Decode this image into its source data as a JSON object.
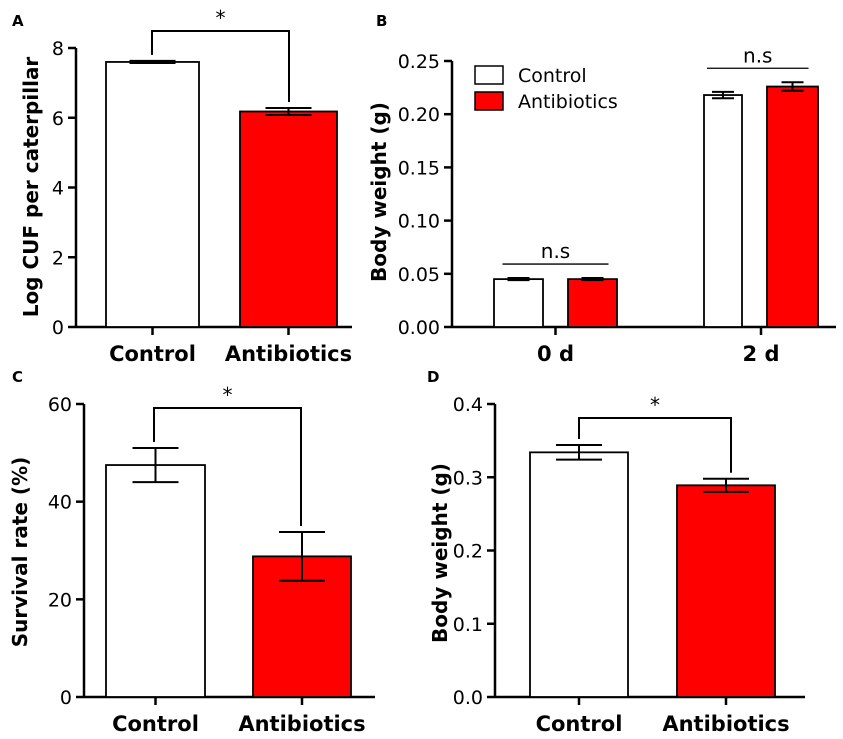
{
  "colors": {
    "control": "#ffffff",
    "antibiotics": "#ff0000",
    "stroke": "#000000"
  },
  "chart_data": [
    {
      "panel": "A",
      "type": "bar",
      "title": "",
      "xlabel": "",
      "ylabel": "Log CUF per caterpillar",
      "ylim": [
        0,
        8
      ],
      "yticks": [
        0,
        2,
        4,
        6,
        8
      ],
      "ytick_labels": [
        "0",
        "2",
        "4",
        "6",
        "8"
      ],
      "categories": [
        "Control",
        "Antibiotics"
      ],
      "values": [
        7.6,
        6.18
      ],
      "errors": [
        0.03,
        0.1
      ],
      "bar_colors": [
        "#ffffff",
        "#ff0000"
      ],
      "significance": [
        {
          "from": 0,
          "to": 1,
          "label": "*"
        }
      ]
    },
    {
      "panel": "B",
      "type": "bar",
      "title": "",
      "xlabel": "",
      "ylabel": "Body weight (g)",
      "ylim": [
        0,
        0.25
      ],
      "yticks": [
        0,
        0.05,
        0.1,
        0.15,
        0.2,
        0.25
      ],
      "ytick_labels": [
        "0.00",
        "0.05",
        "0.10",
        "0.15",
        "0.20",
        "0.25"
      ],
      "categories": [
        "0 d",
        "2 d"
      ],
      "series": [
        {
          "name": "Control",
          "color": "#ffffff",
          "values": [
            0.045,
            0.218
          ],
          "errors": [
            0.001,
            0.003
          ]
        },
        {
          "name": "Antibiotics",
          "color": "#ff0000",
          "values": [
            0.045,
            0.226
          ],
          "errors": [
            0.001,
            0.004
          ]
        }
      ],
      "legend": "top-left",
      "significance": [
        {
          "group": 0,
          "label": "n.s"
        },
        {
          "group": 1,
          "label": "n.s"
        }
      ]
    },
    {
      "panel": "C",
      "type": "bar",
      "title": "",
      "xlabel": "",
      "ylabel": "Survival rate (%)",
      "ylim": [
        0,
        60
      ],
      "yticks": [
        0,
        20,
        40,
        60
      ],
      "ytick_labels": [
        "0",
        "20",
        "40",
        "60"
      ],
      "categories": [
        "Control",
        "Antibiotics"
      ],
      "values": [
        47.5,
        28.8
      ],
      "errors": [
        3.5,
        5.0
      ],
      "bar_colors": [
        "#ffffff",
        "#ff0000"
      ],
      "significance": [
        {
          "from": 0,
          "to": 1,
          "label": "*"
        }
      ]
    },
    {
      "panel": "D",
      "type": "bar",
      "title": "",
      "xlabel": "",
      "ylabel": "Body weight (g)",
      "ylim": [
        0,
        0.4
      ],
      "yticks": [
        0,
        0.1,
        0.2,
        0.3,
        0.4
      ],
      "ytick_labels": [
        "0.0",
        "0.1",
        "0.2",
        "0.3",
        "0.4"
      ],
      "categories": [
        "Control",
        "Antibiotics"
      ],
      "values": [
        0.334,
        0.289
      ],
      "errors": [
        0.01,
        0.009
      ],
      "bar_colors": [
        "#ffffff",
        "#ff0000"
      ],
      "significance": [
        {
          "from": 0,
          "to": 1,
          "label": "*"
        }
      ]
    }
  ]
}
